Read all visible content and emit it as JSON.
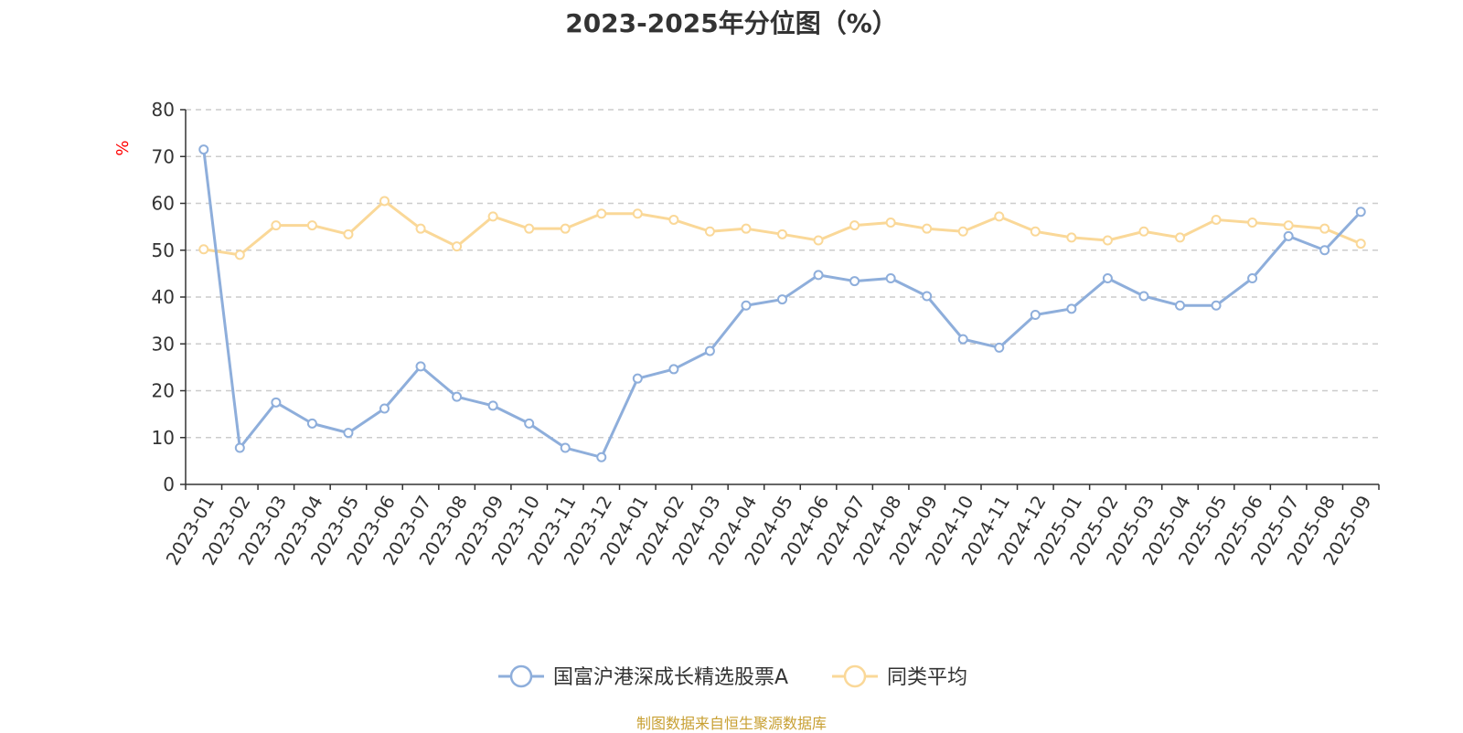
{
  "chart_data": {
    "type": "line",
    "title": "2023-2025年分位图（%）",
    "ylabel": "%",
    "ylim": [
      0,
      80
    ],
    "yticks": [
      0,
      10,
      20,
      30,
      40,
      50,
      60,
      70,
      80
    ],
    "grid": true,
    "legend_position": "bottom",
    "categories": [
      "2023-01",
      "2023-02",
      "2023-03",
      "2023-04",
      "2023-05",
      "2023-06",
      "2023-07",
      "2023-08",
      "2023-09",
      "2023-10",
      "2023-11",
      "2023-12",
      "2024-01",
      "2024-02",
      "2024-03",
      "2024-04",
      "2024-05",
      "2024-06",
      "2024-07",
      "2024-08",
      "2024-09",
      "2024-10",
      "2024-11",
      "2024-12",
      "2025-01",
      "2025-02",
      "2025-03",
      "2025-04",
      "2025-05",
      "2025-06",
      "2025-07",
      "2025-08",
      "2025-09"
    ],
    "series": [
      {
        "name": "国富沪港深成长精选股票A",
        "color": "#8eaedb",
        "values": [
          71.5,
          7.8,
          17.5,
          13.0,
          11.0,
          16.2,
          25.2,
          18.7,
          16.8,
          13.0,
          7.8,
          5.8,
          22.6,
          24.6,
          28.5,
          38.2,
          39.5,
          44.7,
          43.4,
          44.0,
          40.2,
          31.0,
          29.2,
          36.2,
          37.5,
          44.0,
          40.2,
          38.2,
          38.2,
          44.0,
          53.0,
          50.0,
          58.2
        ]
      },
      {
        "name": "同类平均",
        "color": "#fad898",
        "values": [
          50.2,
          49.0,
          55.3,
          55.3,
          53.4,
          60.5,
          54.6,
          50.8,
          57.2,
          54.6,
          54.6,
          57.8,
          57.8,
          56.5,
          54.0,
          54.6,
          53.4,
          52.1,
          55.3,
          55.9,
          54.6,
          54.0,
          57.2,
          54.0,
          52.7,
          52.1,
          54.0,
          52.7,
          56.5,
          55.9,
          55.3,
          54.6,
          51.4
        ]
      }
    ],
    "axis_color": "#333333",
    "grid_color": "#cccccc",
    "ylabel_color": "#ff0000"
  },
  "footer": {
    "source": "制图数据来自恒生聚源数据库"
  }
}
